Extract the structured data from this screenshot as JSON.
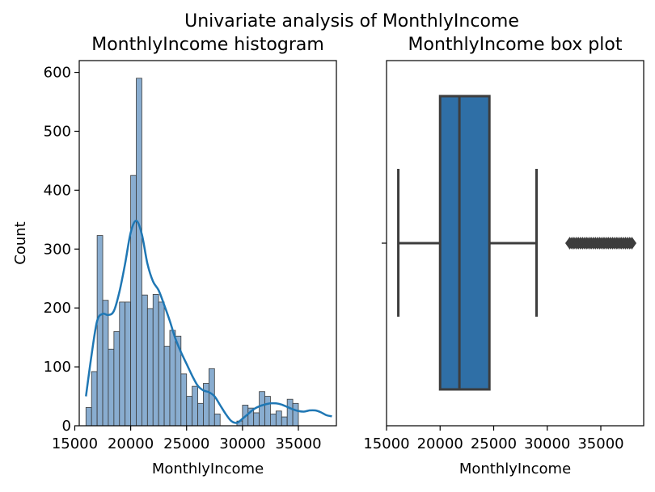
{
  "figure": {
    "suptitle": "Univariate analysis of MonthlyIncome"
  },
  "colors": {
    "bar_fill": "#89add0",
    "bar_edge": "#3a3a3a",
    "kde_line": "#1f77b4",
    "box_fill": "#2f6fa6",
    "box_edge": "#3d3d3d",
    "axis": "#000000"
  },
  "chart_data": [
    {
      "type": "histogram",
      "title": "MonthlyIncome histogram",
      "xlabel": "MonthlyIncome",
      "ylabel": "Count",
      "xlim": [
        15400,
        38400
      ],
      "ylim": [
        0,
        620
      ],
      "xticks": [
        15000,
        20000,
        25000,
        30000,
        35000
      ],
      "xtick_labels": [
        "15000",
        "20000",
        "25000",
        "30000",
        "35000"
      ],
      "yticks": [
        0,
        100,
        200,
        300,
        400,
        500,
        600
      ],
      "ytick_labels": [
        "0",
        "100",
        "200",
        "300",
        "400",
        "500",
        "600"
      ],
      "bin_start": 16000,
      "bin_width": 500,
      "counts": [
        31,
        92,
        323,
        213,
        130,
        160,
        210,
        210,
        425,
        590,
        222,
        199,
        223,
        210,
        135,
        162,
        152,
        88,
        50,
        67,
        38,
        72,
        97,
        20,
        0,
        0,
        0,
        8,
        35,
        30,
        22,
        58,
        50,
        20,
        25,
        15,
        45,
        38
      ],
      "kde": {
        "x": [
          16000,
          16500,
          17000,
          17500,
          18000,
          18500,
          19000,
          19500,
          20000,
          20500,
          21000,
          21500,
          22000,
          22500,
          23000,
          23500,
          24000,
          24500,
          25000,
          25500,
          26000,
          26500,
          27000,
          27500,
          28000,
          28500,
          29000,
          29500,
          30000,
          30500,
          31000,
          31500,
          32000,
          32500,
          33000,
          33500,
          34000,
          34500,
          35000,
          35500,
          36000,
          36500,
          37000,
          37500,
          38000
        ],
        "y": [
          50,
          120,
          178,
          190,
          188,
          195,
          228,
          275,
          328,
          348,
          325,
          275,
          245,
          230,
          205,
          178,
          148,
          125,
          105,
          85,
          68,
          60,
          57,
          50,
          35,
          20,
          8,
          5,
          12,
          20,
          28,
          33,
          36,
          38,
          38,
          36,
          32,
          28,
          25,
          24,
          26,
          26,
          23,
          18,
          16
        ]
      }
    },
    {
      "type": "box",
      "title": "MonthlyIncome box plot",
      "xlabel": "MonthlyIncome",
      "xlim": [
        15000,
        39000
      ],
      "xticks": [
        15000,
        20000,
        25000,
        30000,
        35000
      ],
      "xtick_labels": [
        "15000",
        "20000",
        "25000",
        "30000",
        "35000"
      ],
      "whisker_low": 16100,
      "q1": 20000,
      "median": 21800,
      "q3": 24600,
      "whisker_high": 29000,
      "outliers": [
        32100,
        32300,
        32500,
        32700,
        32900,
        33100,
        33300,
        33500,
        33700,
        33900,
        34100,
        34300,
        34500,
        34700,
        34900,
        35100,
        35300,
        35500,
        35700,
        35900,
        36100,
        36300,
        36500,
        36700,
        36900,
        37100,
        37300,
        37500,
        37700,
        37900
      ]
    }
  ]
}
